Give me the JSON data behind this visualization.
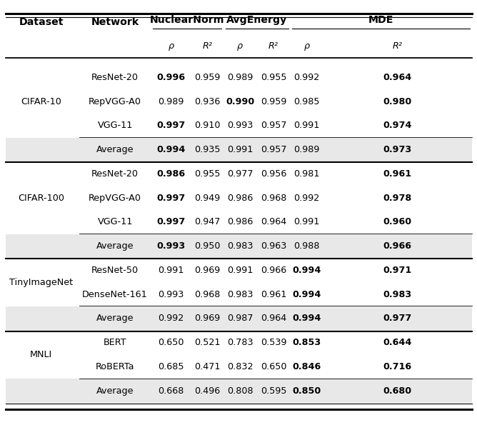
{
  "rows": [
    {
      "dataset": "CIFAR-10",
      "network": "ResNet-20",
      "vals": [
        "0.996",
        "0.959",
        "0.989",
        "0.955",
        "0.992",
        "0.964"
      ],
      "bold": [
        true,
        false,
        false,
        false,
        false,
        true
      ],
      "avg": false
    },
    {
      "dataset": "",
      "network": "RepVGG-A0",
      "vals": [
        "0.989",
        "0.936",
        "0.990",
        "0.959",
        "0.985",
        "0.980"
      ],
      "bold": [
        false,
        false,
        true,
        false,
        false,
        true
      ],
      "avg": false
    },
    {
      "dataset": "",
      "network": "VGG-11",
      "vals": [
        "0.997",
        "0.910",
        "0.993",
        "0.957",
        "0.991",
        "0.974"
      ],
      "bold": [
        true,
        false,
        false,
        false,
        false,
        true
      ],
      "avg": false
    },
    {
      "dataset": "",
      "network": "Average",
      "vals": [
        "0.994",
        "0.935",
        "0.991",
        "0.957",
        "0.989",
        "0.973"
      ],
      "bold": [
        true,
        false,
        false,
        false,
        false,
        true
      ],
      "avg": true
    },
    {
      "dataset": "CIFAR-100",
      "network": "ResNet-20",
      "vals": [
        "0.986",
        "0.955",
        "0.977",
        "0.956",
        "0.981",
        "0.961"
      ],
      "bold": [
        true,
        false,
        false,
        false,
        false,
        true
      ],
      "avg": false
    },
    {
      "dataset": "",
      "network": "RepVGG-A0",
      "vals": [
        "0.997",
        "0.949",
        "0.986",
        "0.968",
        "0.992",
        "0.978"
      ],
      "bold": [
        true,
        false,
        false,
        false,
        false,
        true
      ],
      "avg": false
    },
    {
      "dataset": "",
      "network": "VGG-11",
      "vals": [
        "0.997",
        "0.947",
        "0.986",
        "0.964",
        "0.991",
        "0.960"
      ],
      "bold": [
        true,
        false,
        false,
        false,
        false,
        true
      ],
      "avg": false
    },
    {
      "dataset": "",
      "network": "Average",
      "vals": [
        "0.993",
        "0.950",
        "0.983",
        "0.963",
        "0.988",
        "0.966"
      ],
      "bold": [
        true,
        false,
        false,
        false,
        false,
        true
      ],
      "avg": true
    },
    {
      "dataset": "TinyImageNet",
      "network": "ResNet-50",
      "vals": [
        "0.991",
        "0.969",
        "0.991",
        "0.966",
        "0.994",
        "0.971"
      ],
      "bold": [
        false,
        false,
        false,
        false,
        true,
        true
      ],
      "avg": false
    },
    {
      "dataset": "",
      "network": "DenseNet-161",
      "vals": [
        "0.993",
        "0.968",
        "0.983",
        "0.961",
        "0.994",
        "0.983"
      ],
      "bold": [
        false,
        false,
        false,
        false,
        true,
        true
      ],
      "avg": false
    },
    {
      "dataset": "",
      "network": "Average",
      "vals": [
        "0.992",
        "0.969",
        "0.987",
        "0.964",
        "0.994",
        "0.977"
      ],
      "bold": [
        false,
        false,
        false,
        false,
        true,
        true
      ],
      "avg": true
    },
    {
      "dataset": "MNLI",
      "network": "BERT",
      "vals": [
        "0.650",
        "0.521",
        "0.783",
        "0.539",
        "0.853",
        "0.644"
      ],
      "bold": [
        false,
        false,
        false,
        false,
        true,
        true
      ],
      "avg": false
    },
    {
      "dataset": "",
      "network": "RoBERTa",
      "vals": [
        "0.685",
        "0.471",
        "0.832",
        "0.650",
        "0.846",
        "0.716"
      ],
      "bold": [
        false,
        false,
        false,
        false,
        true,
        true
      ],
      "avg": false
    },
    {
      "dataset": "",
      "network": "Average",
      "vals": [
        "0.668",
        "0.496",
        "0.808",
        "0.595",
        "0.850",
        "0.680"
      ],
      "bold": [
        false,
        false,
        false,
        false,
        true,
        true
      ],
      "avg": true
    }
  ],
  "avg_bg_color": "#e8e8e8",
  "fig_bg": "#ffffff",
  "font_size": 9.2,
  "header_font_size": 10.2
}
